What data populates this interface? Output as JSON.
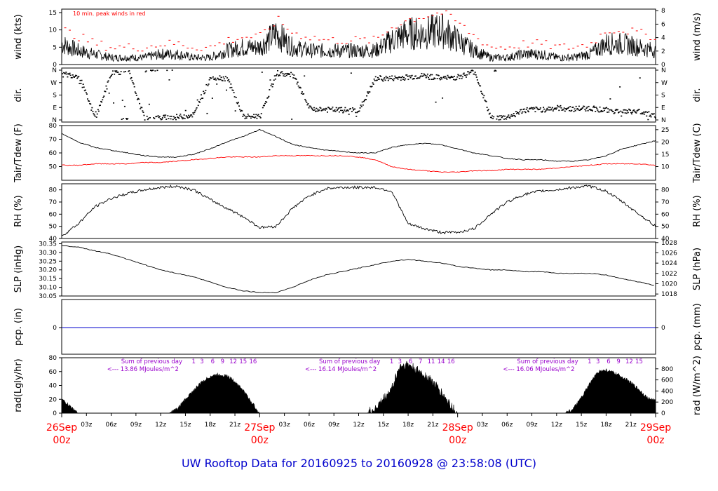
{
  "title": "UW Rooftop Data for 20160925  to  20160928 @ 23:58:08  (UTC)",
  "colors": {
    "frame": "#000000",
    "wind_peak": "#ff0000",
    "dew": "#ff0000",
    "precip": "#0000cc",
    "day_label": "#ff0000",
    "note": "#9900cc",
    "title": "#0000cc"
  },
  "x_axis": {
    "day_labels": [
      {
        "date": "26Sep",
        "hour": "00z",
        "t": 0
      },
      {
        "date": "27Sep",
        "hour": "00z",
        "t": 24
      },
      {
        "date": "28Sep",
        "hour": "00z",
        "t": 48
      },
      {
        "date": "29Sep",
        "hour": "00z",
        "t": 72
      }
    ],
    "hour_ticks": [
      {
        "t": 3,
        "label": "03z"
      },
      {
        "t": 6,
        "label": "06z"
      },
      {
        "t": 9,
        "label": "09z"
      },
      {
        "t": 12,
        "label": "12z"
      },
      {
        "t": 15,
        "label": "15z"
      },
      {
        "t": 18,
        "label": "18z"
      },
      {
        "t": 21,
        "label": "21z"
      },
      {
        "t": 27,
        "label": "03z"
      },
      {
        "t": 30,
        "label": "06z"
      },
      {
        "t": 33,
        "label": "09z"
      },
      {
        "t": 36,
        "label": "12z"
      },
      {
        "t": 39,
        "label": "15z"
      },
      {
        "t": 42,
        "label": "18z"
      },
      {
        "t": 45,
        "label": "21z"
      },
      {
        "t": 51,
        "label": "03z"
      },
      {
        "t": 54,
        "label": "06z"
      },
      {
        "t": 57,
        "label": "09z"
      },
      {
        "t": 60,
        "label": "12z"
      },
      {
        "t": 63,
        "label": "15z"
      },
      {
        "t": 66,
        "label": "18z"
      },
      {
        "t": 69,
        "label": "21z"
      }
    ]
  },
  "chart_data": [
    {
      "type": "line",
      "panel": "wind",
      "ylabel": "wind (kts)",
      "ylabel_right": "wind (m/s)",
      "ylim": [
        0,
        16
      ],
      "yticks": [
        0,
        5,
        10,
        15
      ],
      "yticks_right": [
        0,
        2,
        4,
        6,
        8
      ],
      "right_factor": 1.9438,
      "annotation": "10 min. peak winds in red",
      "series": [
        {
          "x": [
            0,
            2,
            4,
            6,
            8,
            10,
            12,
            14,
            16,
            18,
            20,
            22,
            24,
            26,
            28,
            30,
            32,
            34,
            36,
            38,
            40,
            42,
            44,
            46,
            48,
            50,
            52,
            54,
            56,
            58,
            60,
            62,
            64,
            66,
            68,
            70,
            72
          ],
          "values": [
            6,
            4,
            3,
            2,
            2,
            2,
            3,
            3,
            2,
            2,
            4,
            5,
            5,
            9,
            5,
            4,
            4,
            4,
            4,
            4,
            7,
            9,
            9,
            10,
            7,
            4,
            2,
            2,
            3,
            3,
            2,
            2,
            3,
            6,
            6,
            5,
            4
          ]
        },
        {
          "x": [
            0,
            2,
            4,
            6,
            8,
            10,
            12,
            14,
            16,
            18,
            20,
            22,
            24,
            26,
            28,
            30,
            32,
            34,
            36,
            38,
            40,
            42,
            44,
            46,
            48,
            50,
            52,
            54,
            56,
            58,
            60,
            62,
            64,
            66,
            68,
            70,
            72
          ],
          "values": [
            10,
            8,
            6,
            5,
            5,
            5,
            6,
            6,
            5,
            5,
            7,
            8,
            8,
            13,
            9,
            8,
            7,
            7,
            7,
            7,
            11,
            13,
            14,
            15,
            12,
            8,
            5,
            5,
            6,
            6,
            5,
            5,
            6,
            10,
            10,
            9,
            8
          ]
        }
      ]
    },
    {
      "type": "scatter",
      "panel": "direction",
      "ylabel": "dir.",
      "ylabel_right": "dir.",
      "categories": [
        "N",
        "E",
        "S",
        "W",
        "N"
      ],
      "x": [
        0,
        2,
        4,
        6,
        8,
        10,
        12,
        14,
        16,
        18,
        20,
        22,
        24,
        26,
        28,
        30,
        32,
        34,
        36,
        38,
        40,
        42,
        44,
        46,
        48,
        50,
        52,
        54,
        56,
        58,
        60,
        62,
        64,
        66,
        68,
        70,
        72
      ],
      "values": [
        330,
        320,
        10,
        340,
        355,
        5,
        15,
        20,
        40,
        310,
        300,
        20,
        30,
        340,
        320,
        80,
        75,
        70,
        70,
        300,
        300,
        310,
        320,
        300,
        310,
        350,
        10,
        20,
        70,
        75,
        85,
        80,
        85,
        70,
        60,
        60,
        30
      ]
    },
    {
      "type": "line",
      "panel": "temperature",
      "ylabel": "Tair/Tdew (F)",
      "ylabel_right": "Tair/Tdew (C)",
      "ylim": [
        40,
        80
      ],
      "yticks": [
        50,
        60,
        70,
        80
      ],
      "yticks_right": [
        10,
        15,
        20,
        25
      ],
      "series": [
        {
          "name": "Tair",
          "x": [
            0,
            2,
            4,
            6,
            8,
            10,
            12,
            14,
            16,
            18,
            20,
            22,
            24,
            26,
            28,
            30,
            32,
            34,
            36,
            38,
            40,
            42,
            44,
            46,
            48,
            50,
            52,
            54,
            56,
            58,
            60,
            62,
            64,
            66,
            68,
            70,
            72
          ],
          "values": [
            74,
            68,
            64,
            62,
            60,
            58,
            57,
            57,
            59,
            63,
            68,
            72,
            77,
            72,
            66,
            64,
            62,
            61,
            60,
            60,
            64,
            66,
            67,
            66,
            63,
            60,
            58,
            56,
            55,
            55,
            54,
            54,
            55,
            58,
            63,
            66,
            69
          ]
        },
        {
          "name": "Tdew",
          "x": [
            0,
            2,
            4,
            6,
            8,
            10,
            12,
            14,
            16,
            18,
            20,
            22,
            24,
            26,
            28,
            30,
            32,
            34,
            36,
            38,
            40,
            42,
            44,
            46,
            48,
            50,
            52,
            54,
            56,
            58,
            60,
            62,
            64,
            66,
            68,
            70,
            72
          ],
          "values": [
            51,
            51,
            52,
            52,
            52,
            53,
            53,
            54,
            55,
            56,
            57,
            57,
            57,
            58,
            58,
            58,
            58,
            58,
            57,
            55,
            50,
            48,
            47,
            46,
            46,
            47,
            47,
            48,
            48,
            48,
            49,
            50,
            51,
            52,
            52,
            52,
            51
          ]
        }
      ]
    },
    {
      "type": "line",
      "panel": "relative_humidity",
      "ylabel": "RH (%)",
      "ylabel_right": "RH (%)",
      "ylim": [
        40,
        85
      ],
      "yticks": [
        40,
        50,
        60,
        70,
        80
      ],
      "yticks_right": [
        40,
        50,
        60,
        70,
        80
      ],
      "x": [
        0,
        2,
        4,
        6,
        8,
        10,
        12,
        14,
        16,
        18,
        20,
        22,
        24,
        26,
        28,
        30,
        32,
        34,
        36,
        38,
        40,
        42,
        44,
        46,
        48,
        50,
        52,
        54,
        56,
        58,
        60,
        62,
        64,
        66,
        68,
        70,
        72
      ],
      "values": [
        42,
        52,
        66,
        73,
        77,
        80,
        82,
        83,
        80,
        72,
        65,
        58,
        49,
        50,
        65,
        75,
        81,
        82,
        82,
        82,
        79,
        52,
        48,
        45,
        45,
        48,
        60,
        70,
        76,
        79,
        80,
        82,
        83,
        79,
        70,
        60,
        50
      ]
    },
    {
      "type": "line",
      "panel": "pressure",
      "ylabel": "SLP (inHg)",
      "ylabel_right": "SLP (hPa)",
      "ylim": [
        30.05,
        30.36
      ],
      "yticks": [
        30.05,
        30.1,
        30.15,
        30.2,
        30.25,
        30.3,
        30.35
      ],
      "yticks_right": [
        1018,
        1020,
        1022,
        1024,
        1026,
        1028
      ],
      "x": [
        0,
        2,
        4,
        6,
        8,
        10,
        12,
        14,
        16,
        18,
        20,
        22,
        24,
        26,
        28,
        30,
        32,
        34,
        36,
        38,
        40,
        42,
        44,
        46,
        48,
        50,
        52,
        54,
        56,
        58,
        60,
        62,
        64,
        66,
        68,
        70,
        72
      ],
      "values": [
        30.34,
        30.33,
        30.31,
        30.29,
        30.26,
        30.23,
        30.2,
        30.18,
        30.16,
        30.13,
        30.1,
        30.08,
        30.07,
        30.07,
        30.1,
        30.14,
        30.17,
        30.19,
        30.21,
        30.23,
        30.25,
        30.26,
        30.25,
        30.24,
        30.22,
        30.21,
        30.2,
        30.2,
        30.19,
        30.19,
        30.18,
        30.18,
        30.18,
        30.17,
        30.15,
        30.13,
        30.11
      ]
    },
    {
      "type": "line",
      "panel": "precipitation",
      "ylabel": "pcp. (in)",
      "ylabel_right": "pcp. (mm)",
      "yticks": [
        0
      ],
      "yticks_right": [
        0
      ],
      "x": [
        0,
        72
      ],
      "values": [
        0,
        0
      ]
    },
    {
      "type": "area",
      "panel": "radiation",
      "ylabel": "rad(Lgly/hr)",
      "ylabel_right": "rad (W/m^2)",
      "ylim": [
        0,
        80
      ],
      "yticks": [
        0,
        20,
        40,
        60,
        80
      ],
      "yticks_right": [
        0,
        200,
        400,
        600,
        800
      ],
      "x": [
        0,
        1,
        2,
        12,
        13,
        14,
        15,
        16,
        17,
        18,
        19,
        20,
        21,
        22,
        23,
        24,
        36,
        37,
        38,
        39,
        40,
        41,
        42,
        43,
        44,
        45,
        46,
        47,
        48,
        60,
        61,
        62,
        63,
        64,
        65,
        66,
        67,
        68,
        69,
        70,
        71,
        72
      ],
      "values": [
        20,
        10,
        0,
        0,
        0,
        6,
        20,
        33,
        45,
        53,
        56,
        54,
        46,
        33,
        16,
        0,
        0,
        0,
        6,
        20,
        35,
        68,
        70,
        62,
        55,
        45,
        30,
        14,
        0,
        0,
        0,
        6,
        22,
        42,
        60,
        62,
        58,
        52,
        44,
        34,
        22,
        18
      ],
      "annotations": [
        {
          "t": 5.5,
          "text": "Sum of previous day"
        },
        {
          "t": 5.5,
          "text": "<--- 13.86 MJoules/m^2"
        },
        {
          "t": 29.5,
          "text": "Sum of previous day"
        },
        {
          "t": 29.5,
          "text": "<--- 16.14 MJoules/m^2"
        },
        {
          "t": 53.5,
          "text": "Sum of previous day"
        },
        {
          "t": 53.5,
          "text": "<--- 16.06 MJoules/m^2"
        }
      ],
      "hour_marks": [
        {
          "t": 16,
          "label": "1"
        },
        {
          "t": 17,
          "label": "3"
        },
        {
          "t": 18.3,
          "label": "6"
        },
        {
          "t": 19.5,
          "label": "9"
        },
        {
          "t": 20.8,
          "label": "12"
        },
        {
          "t": 22,
          "label": "15"
        },
        {
          "t": 23.2,
          "label": "16"
        },
        {
          "t": 40,
          "label": "1"
        },
        {
          "t": 41,
          "label": "3"
        },
        {
          "t": 42.3,
          "label": "6"
        },
        {
          "t": 43.5,
          "label": "7"
        },
        {
          "t": 44.8,
          "label": "11"
        },
        {
          "t": 46,
          "label": "14"
        },
        {
          "t": 47.2,
          "label": "16"
        },
        {
          "t": 64,
          "label": "1"
        },
        {
          "t": 65,
          "label": "3"
        },
        {
          "t": 66.3,
          "label": "6"
        },
        {
          "t": 67.5,
          "label": "9"
        },
        {
          "t": 68.8,
          "label": "12"
        },
        {
          "t": 70,
          "label": "15"
        }
      ]
    }
  ]
}
